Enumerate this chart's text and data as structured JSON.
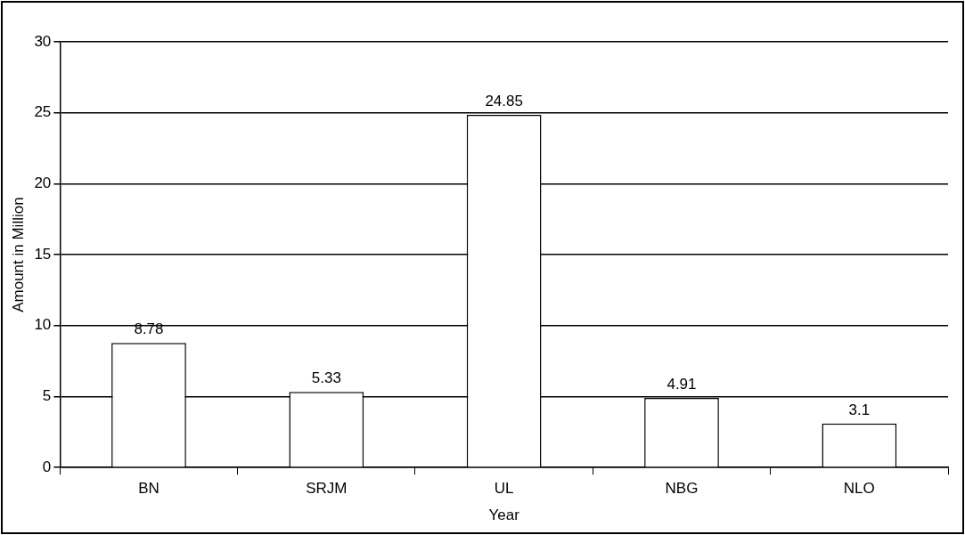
{
  "chart_data": {
    "type": "bar",
    "xlabel": "Year",
    "ylabel": "Amount in Million",
    "categories": [
      "BN",
      "SRJM",
      "UL",
      "NBG",
      "NLO"
    ],
    "values": [
      8.78,
      5.33,
      24.85,
      4.91,
      3.1
    ],
    "color": "#ffffff",
    "ylim": [
      0,
      30
    ],
    "yticks": [
      0,
      5,
      10,
      15,
      20,
      25,
      30
    ],
    "grid": "y",
    "data_labels": true,
    "legend": false
  }
}
